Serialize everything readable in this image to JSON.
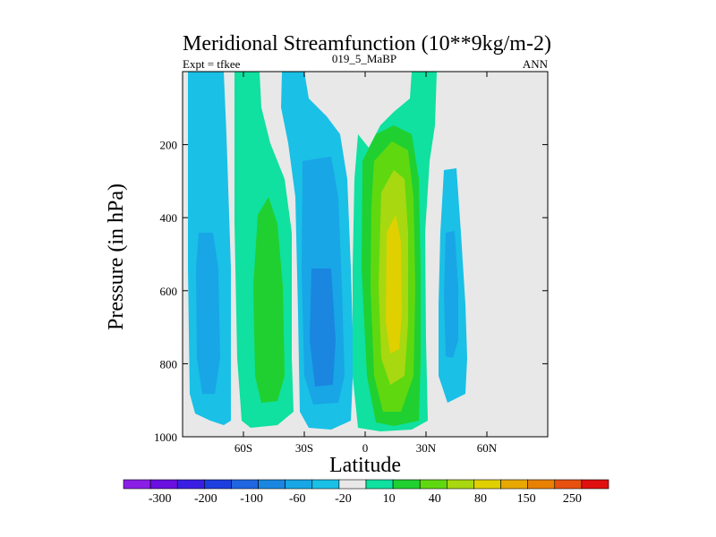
{
  "chart_data": {
    "type": "heatmap",
    "title": "Meridional Streamfunction (10**9kg/m-2)",
    "subtitle_left": "Expt = tfkee",
    "subtitle_center": "019_5_MaBP",
    "subtitle_right": "ANN",
    "xlabel": "Latitude",
    "ylabel": "Pressure (in hPa)",
    "x_ticks": [
      {
        "value": -60,
        "label": "60S"
      },
      {
        "value": -30,
        "label": "30S"
      },
      {
        "value": 0,
        "label": "0"
      },
      {
        "value": 30,
        "label": "30N"
      },
      {
        "value": 60,
        "label": "60N"
      }
    ],
    "y_ticks": [
      {
        "value": 200,
        "label": "200"
      },
      {
        "value": 400,
        "label": "400"
      },
      {
        "value": 600,
        "label": "600"
      },
      {
        "value": 800,
        "label": "800"
      },
      {
        "value": 1000,
        "label": "1000"
      }
    ],
    "xlim": [
      -90,
      90
    ],
    "ylim": [
      1000,
      0
    ],
    "y_scale": "linear-inverted",
    "colorbar": {
      "labels": [
        "-300",
        "-200",
        "-100",
        "-60",
        "-20",
        "10",
        "40",
        "80",
        "150",
        "250"
      ],
      "colors": [
        "#8a1ee6",
        "#6a10e0",
        "#3b1ee3",
        "#1e3fe0",
        "#1f66e0",
        "#1a86e0",
        "#18a6e6",
        "#1ac0e6",
        "#e8e8e8",
        "#10e0a0",
        "#20d030",
        "#60d810",
        "#a8d810",
        "#e0d000",
        "#e8a800",
        "#e88000",
        "#e85010",
        "#e01010"
      ]
    },
    "contour_fill_levels": {
      "neg_20": "#1ac0e6",
      "neg_60": "#18a6e6",
      "neg_100": "#1a86e0",
      "pos_10": "#10e0a0",
      "pos_40": "#20d030",
      "pos_80": "#60d810",
      "pos_150": "#a8d810",
      "pos_250": "#e0d000"
    }
  }
}
